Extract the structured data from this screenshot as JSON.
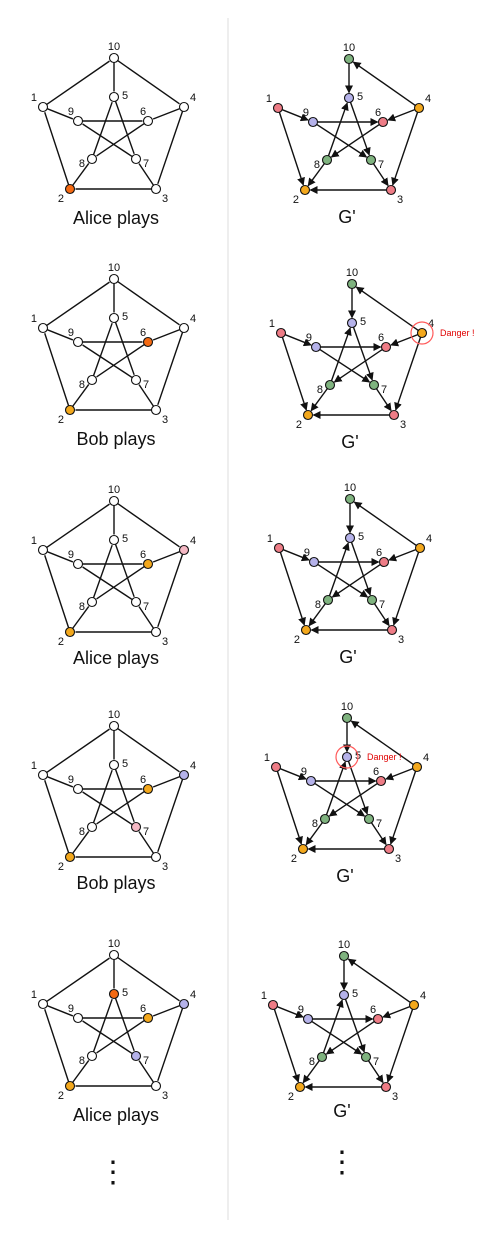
{
  "colors": {
    "white": "#ffffff",
    "orange": "#f3a81c",
    "red_orange": "#f56a12",
    "pink": "#ee7c86",
    "pale_pink": "#f5b8c4",
    "purple": "#b5b2ea",
    "green": "#7fb37f",
    "danger": "#e00000"
  },
  "vertex_labels": [
    "1",
    "2",
    "3",
    "4",
    "5",
    "6",
    "7",
    "8",
    "9",
    "10"
  ],
  "danger_label": "Danger !",
  "ellipsis": "⋮",
  "panels": [
    {
      "caption": "Alice plays",
      "fills": [
        "white",
        "red_orange",
        "white",
        "white",
        "white",
        "white",
        "white",
        "white",
        "white",
        "white"
      ]
    },
    {
      "caption": "G'",
      "fills": [
        "pink",
        "orange",
        "pink",
        "orange",
        "purple",
        "pink",
        "green",
        "green",
        "purple",
        "green"
      ]
    },
    {
      "caption": "Bob plays",
      "fills": [
        "white",
        "orange",
        "white",
        "white",
        "white",
        "red_orange",
        "white",
        "white",
        "white",
        "white"
      ]
    },
    {
      "caption": "G'",
      "fills": [
        "pink",
        "orange",
        "pink",
        "orange",
        "purple",
        "pink",
        "green",
        "green",
        "purple",
        "green"
      ],
      "danger_vertex": "4"
    },
    {
      "caption": "Alice plays",
      "fills": [
        "white",
        "orange",
        "white",
        "pale_pink",
        "white",
        "orange",
        "white",
        "white",
        "white",
        "white"
      ]
    },
    {
      "caption": "G'",
      "fills": [
        "pink",
        "orange",
        "pink",
        "orange",
        "purple",
        "pink",
        "green",
        "green",
        "purple",
        "green"
      ]
    },
    {
      "caption": "Bob plays",
      "fills": [
        "white",
        "orange",
        "white",
        "purple",
        "white",
        "orange",
        "pale_pink",
        "white",
        "white",
        "white"
      ]
    },
    {
      "caption": "G'",
      "fills": [
        "pink",
        "orange",
        "pink",
        "orange",
        "purple",
        "pink",
        "green",
        "green",
        "purple",
        "green"
      ],
      "danger_vertex": "5"
    },
    {
      "caption": "Alice plays",
      "fills": [
        "white",
        "orange",
        "white",
        "purple",
        "red_orange",
        "orange",
        "purple",
        "white",
        "white",
        "white"
      ]
    },
    {
      "caption": "G'",
      "fills": [
        "pink",
        "orange",
        "pink",
        "orange",
        "purple",
        "pink",
        "green",
        "green",
        "purple",
        "green"
      ]
    }
  ]
}
